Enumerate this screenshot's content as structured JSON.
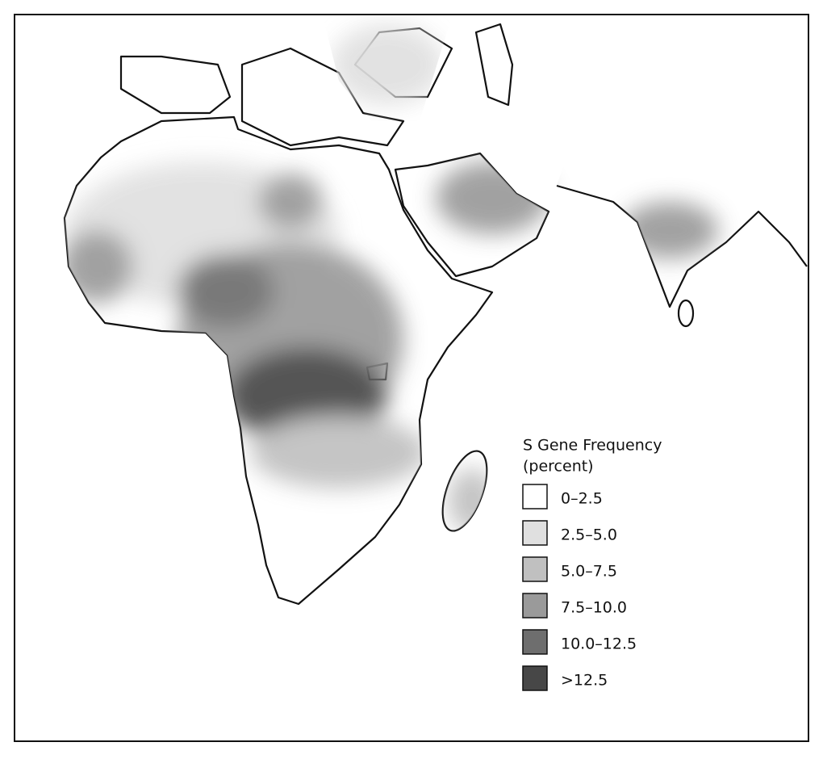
{
  "legend": {
    "title": "S Gene Frequency",
    "subtitle": "(percent)",
    "items": [
      {
        "label": "0–2.5",
        "color": "#ffffff"
      },
      {
        "label": "2.5–5.0",
        "color": "#e0e0e0"
      },
      {
        "label": "5.0–7.5",
        "color": "#c0c0c0"
      },
      {
        "label": "7.5–10.0",
        "color": "#9a9a9a"
      },
      {
        "label": "10.0–12.5",
        "color": "#6e6e6e"
      },
      {
        "label": ">12.5",
        "color": "#474747"
      }
    ]
  }
}
